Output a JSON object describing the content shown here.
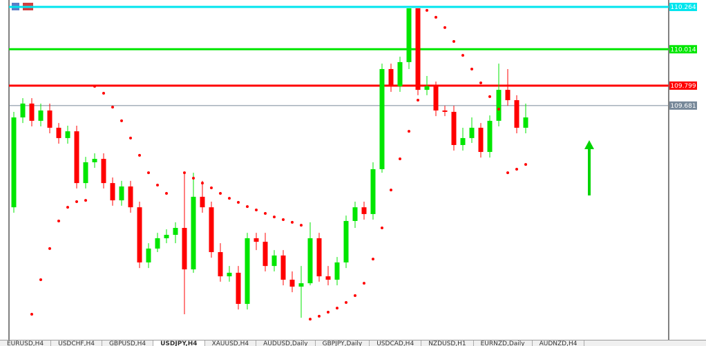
{
  "chart_data": {
    "type": "candlestick",
    "ylim": [
      108.305,
      110.305
    ],
    "up_color": "#00e600",
    "down_color": "#ff0000",
    "open": [
      109.08,
      109.611,
      109.693,
      109.591,
      109.652,
      109.55,
      109.489,
      109.529,
      109.223,
      109.346,
      109.366,
      109.223,
      109.121,
      109.203,
      109.08,
      108.754,
      108.836,
      108.897,
      108.917,
      108.958,
      108.713,
      109.142,
      109.08,
      108.815,
      108.672,
      108.693,
      108.509,
      108.897,
      108.876,
      108.733,
      108.795,
      108.652,
      108.611,
      108.631,
      108.897,
      108.672,
      108.652,
      108.754,
      108.999,
      109.08,
      109.04,
      109.305,
      109.897,
      109.795,
      109.938,
      110.256,
      109.774,
      109.795,
      109.652,
      109.644,
      109.448,
      109.489,
      109.55,
      109.407,
      109.591,
      109.774,
      109.713,
      109.55
    ],
    "high": [
      109.644,
      109.725,
      109.725,
      109.693,
      109.693,
      109.578,
      109.562,
      109.562,
      109.378,
      109.399,
      109.399,
      109.256,
      109.236,
      109.236,
      109.113,
      108.868,
      108.929,
      108.95,
      108.991,
      109.284,
      109.284,
      109.236,
      109.113,
      108.868,
      108.733,
      108.733,
      108.929,
      108.929,
      108.929,
      108.827,
      108.827,
      108.701,
      108.733,
      108.991,
      108.929,
      108.733,
      108.786,
      109.031,
      109.113,
      109.113,
      109.346,
      109.929,
      109.929,
      109.97,
      110.256,
      110.256,
      109.856,
      109.823,
      109.68,
      109.68,
      109.55,
      109.611,
      109.578,
      109.623,
      109.929,
      109.897,
      109.742,
      109.693
    ],
    "low": [
      109.048,
      109.578,
      109.558,
      109.558,
      109.517,
      109.456,
      109.456,
      109.191,
      109.191,
      109.313,
      109.191,
      109.089,
      109.089,
      109.048,
      108.721,
      108.721,
      108.815,
      108.868,
      108.868,
      108.448,
      108.693,
      109.048,
      108.782,
      108.64,
      108.64,
      108.476,
      108.476,
      108.827,
      108.701,
      108.701,
      108.619,
      108.578,
      108.427,
      108.619,
      108.64,
      108.619,
      108.619,
      108.721,
      108.958,
      109.007,
      109.007,
      109.284,
      109.762,
      109.762,
      109.897,
      109.742,
      109.742,
      109.619,
      109.619,
      109.415,
      109.415,
      109.46,
      109.374,
      109.374,
      109.558,
      109.68,
      109.517,
      109.517
    ],
    "close": [
      109.611,
      109.693,
      109.591,
      109.652,
      109.55,
      109.489,
      109.529,
      109.223,
      109.346,
      109.366,
      109.223,
      109.121,
      109.203,
      109.08,
      108.754,
      108.836,
      108.897,
      108.917,
      108.958,
      108.713,
      109.142,
      109.08,
      108.815,
      108.672,
      108.693,
      108.509,
      108.897,
      108.876,
      108.733,
      108.795,
      108.652,
      108.611,
      108.631,
      108.897,
      108.672,
      108.652,
      108.754,
      108.999,
      109.08,
      109.04,
      109.305,
      109.897,
      109.795,
      109.938,
      110.256,
      109.774,
      109.795,
      109.652,
      109.644,
      109.448,
      109.489,
      109.55,
      109.407,
      109.591,
      109.774,
      109.713,
      109.55,
      109.611
    ],
    "psar": {
      "color": "#ff0000",
      "values": [
        null,
        null,
        108.448,
        108.652,
        108.836,
        108.999,
        109.08,
        109.113,
        109.121,
        109.795,
        109.754,
        109.672,
        109.591,
        109.489,
        109.387,
        109.284,
        109.211,
        109.162,
        null,
        109.284,
        109.252,
        109.223,
        109.195,
        109.162,
        109.133,
        109.109,
        109.084,
        109.064,
        109.044,
        109.023,
        109.007,
        108.991,
        108.974,
        108.419,
        108.436,
        108.46,
        108.484,
        108.517,
        108.558,
        108.631,
        108.774,
        108.958,
        109.182,
        109.366,
        109.529,
        109.713,
        110.244,
        110.203,
        110.142,
        110.06,
        109.978,
        109.897,
        109.815,
        109.734,
        109.66,
        109.284,
        109.305,
        109.333
      ]
    },
    "levels": [
      {
        "value": 110.264,
        "color": "#00e5ee"
      },
      {
        "value": 110.014,
        "color": "#00e600"
      },
      {
        "value": 109.799,
        "color": "#ff0000"
      },
      {
        "value": 109.681,
        "color": "#778899"
      }
    ]
  },
  "tabs": [
    "EURUSD,H4",
    "USDCHF,H4",
    "GBPUSD,H4",
    "USDJPY,H4",
    "XAUUSD,H4",
    "AUDUSD,Daily",
    "GBPJPY,Daily",
    "USDCAD,H4",
    "NZDUSD,H1",
    "EURNZD,Daily",
    "AUDNZD,H4"
  ],
  "active_tab": 3
}
